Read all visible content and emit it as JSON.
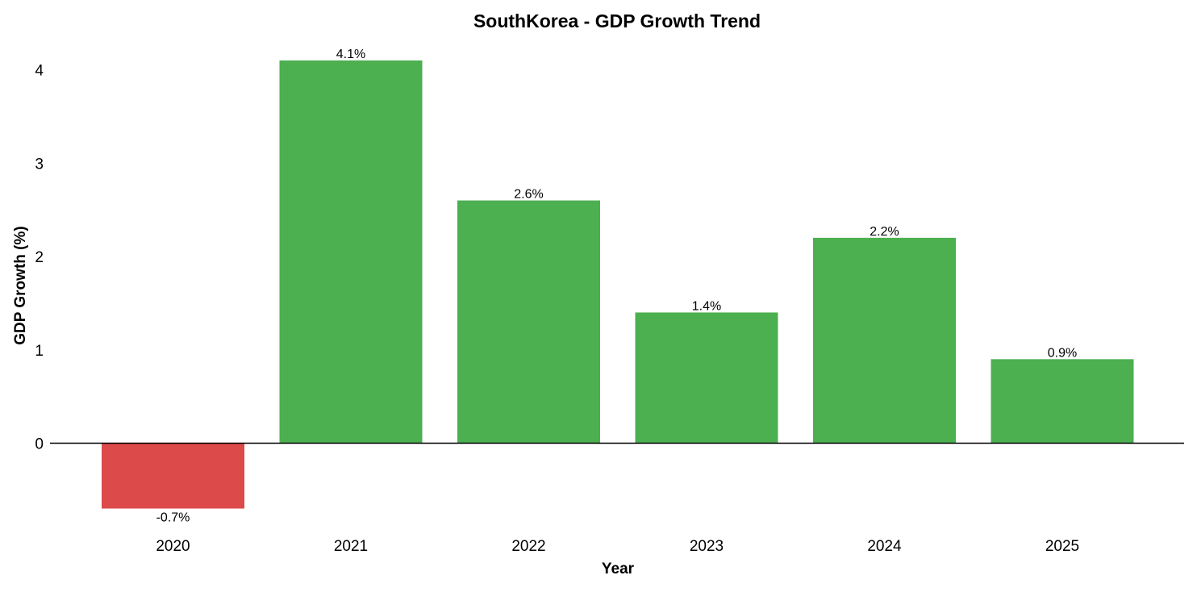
{
  "chart_data": {
    "type": "bar",
    "title": "SouthKorea - GDP Growth Trend",
    "xlabel": "Year",
    "ylabel": "GDP Growth (%)",
    "categories": [
      "2020",
      "2021",
      "2022",
      "2023",
      "2024",
      "2025"
    ],
    "values": [
      -0.7,
      4.1,
      2.6,
      1.4,
      2.2,
      0.9
    ],
    "data_labels": [
      "-0.7%",
      "4.1%",
      "2.6%",
      "1.4%",
      "2.2%",
      "0.9%"
    ],
    "yticks": [
      0,
      1,
      2,
      3,
      4
    ],
    "ylim": [
      -0.9,
      4.3
    ],
    "grid": false,
    "colors": {
      "positive": "#4caf50",
      "negative": "#dc4a4a",
      "zero_line": "#000000"
    }
  }
}
